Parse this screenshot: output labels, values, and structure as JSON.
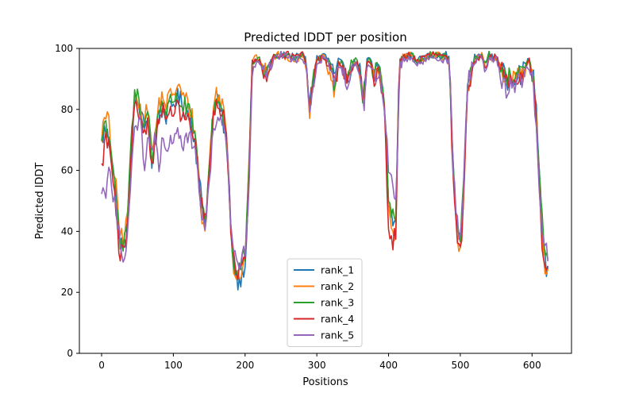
{
  "chart_data": {
    "type": "line",
    "title": "Predicted lDDT per position",
    "xlabel": "Positions",
    "ylabel": "Predicted lDDT",
    "xlim": [
      -31,
      655
    ],
    "ylim": [
      0,
      100
    ],
    "xticks": [
      0,
      100,
      200,
      300,
      400,
      500,
      600
    ],
    "yticks": [
      0,
      20,
      40,
      60,
      80,
      100
    ],
    "grid": false,
    "legend_position": "lower-center",
    "x_max": 623,
    "anchors_x": [
      0,
      5,
      10,
      15,
      20,
      25,
      30,
      35,
      40,
      45,
      50,
      55,
      60,
      65,
      70,
      75,
      80,
      85,
      90,
      95,
      100,
      105,
      110,
      115,
      120,
      125,
      130,
      135,
      140,
      145,
      150,
      155,
      160,
      165,
      170,
      175,
      180,
      185,
      190,
      195,
      200,
      205,
      210,
      215,
      220,
      225,
      230,
      235,
      240,
      245,
      250,
      260,
      270,
      280,
      285,
      290,
      300,
      310,
      320,
      325,
      330,
      335,
      340,
      345,
      350,
      355,
      360,
      365,
      370,
      375,
      380,
      385,
      390,
      395,
      400,
      405,
      410,
      415,
      420,
      430,
      440,
      450,
      460,
      470,
      475,
      480,
      485,
      490,
      495,
      500,
      505,
      510,
      520,
      530,
      535,
      540,
      550,
      560,
      565,
      570,
      575,
      580,
      585,
      590,
      595,
      600,
      605,
      610,
      615,
      620,
      623
    ],
    "series": [
      {
        "name": "rank_1",
        "color": "#1f77b4",
        "values": [
          69,
          74,
          70,
          65,
          52,
          38,
          35,
          38,
          60,
          80,
          82,
          78,
          74,
          80,
          62,
          70,
          79,
          80,
          78,
          80,
          82,
          84,
          83,
          80,
          79,
          76,
          70,
          58,
          50,
          44,
          60,
          78,
          83,
          80,
          75,
          66,
          45,
          28,
          24,
          25,
          30,
          55,
          95,
          96,
          96,
          94,
          93,
          95,
          97,
          98,
          98,
          98,
          97,
          98,
          96,
          82,
          97,
          98,
          95,
          90,
          96,
          95,
          92,
          91,
          95,
          96,
          94,
          84,
          96,
          96,
          92,
          95,
          90,
          80,
          50,
          44,
          42,
          95,
          97,
          98,
          96,
          97,
          98,
          98,
          97,
          98,
          96,
          60,
          42,
          36,
          55,
          88,
          97,
          98,
          94,
          98,
          97,
          92,
          88,
          92,
          90,
          93,
          91,
          94,
          97,
          93,
          85,
          60,
          35,
          28,
          30
        ]
      },
      {
        "name": "rank_2",
        "color": "#ff7f0e",
        "values": [
          72,
          77,
          76,
          62,
          54,
          40,
          38,
          42,
          62,
          82,
          85,
          80,
          76,
          82,
          65,
          73,
          82,
          84,
          82,
          84,
          86,
          87,
          86,
          84,
          82,
          79,
          72,
          60,
          42,
          41,
          62,
          80,
          85,
          84,
          80,
          70,
          42,
          26,
          26,
          27,
          33,
          58,
          96,
          97,
          96,
          93,
          92,
          94,
          97,
          98,
          98,
          97,
          96,
          98,
          95,
          80,
          96,
          97,
          90,
          84,
          95,
          94,
          90,
          89,
          94,
          95,
          93,
          82,
          95,
          95,
          90,
          94,
          88,
          78,
          48,
          40,
          40,
          94,
          97,
          98,
          96,
          97,
          98,
          98,
          96,
          97,
          95,
          58,
          40,
          34,
          54,
          87,
          96,
          98,
          93,
          97,
          97,
          91,
          87,
          91,
          89,
          92,
          90,
          93,
          96,
          92,
          80,
          58,
          33,
          26,
          28
        ]
      },
      {
        "name": "rank_3",
        "color": "#2ca02c",
        "values": [
          70,
          76,
          72,
          64,
          50,
          36,
          34,
          40,
          64,
          84,
          85,
          79,
          75,
          81,
          63,
          72,
          80,
          83,
          79,
          82,
          84,
          84,
          82,
          81,
          80,
          77,
          71,
          58,
          46,
          43,
          61,
          79,
          84,
          82,
          77,
          68,
          40,
          26,
          25,
          30,
          32,
          56,
          95,
          97,
          96,
          93,
          93,
          95,
          97,
          98,
          98,
          98,
          97,
          98,
          96,
          81,
          96,
          98,
          94,
          88,
          96,
          95,
          92,
          90,
          95,
          96,
          94,
          83,
          96,
          96,
          91,
          95,
          89,
          80,
          52,
          46,
          44,
          96,
          97,
          98,
          96,
          97,
          98,
          98,
          97,
          98,
          95,
          60,
          41,
          38,
          56,
          88,
          97,
          98,
          94,
          98,
          97,
          91,
          89,
          92,
          88,
          92,
          91,
          94,
          97,
          92,
          82,
          58,
          40,
          30,
          29
        ]
      },
      {
        "name": "rank_4",
        "color": "#d62728",
        "values": [
          60,
          71,
          68,
          60,
          45,
          32,
          33,
          36,
          58,
          79,
          80,
          77,
          72,
          78,
          60,
          70,
          78,
          80,
          77,
          78,
          80,
          80,
          79,
          77,
          76,
          74,
          68,
          56,
          48,
          43,
          58,
          76,
          80,
          81,
          78,
          68,
          42,
          28,
          27,
          30,
          33,
          54,
          95,
          96,
          96,
          93,
          92,
          94,
          97,
          98,
          98,
          98,
          97,
          98,
          95,
          80,
          96,
          97,
          93,
          88,
          95,
          94,
          91,
          90,
          94,
          95,
          93,
          81,
          95,
          95,
          90,
          94,
          88,
          78,
          40,
          36,
          40,
          95,
          97,
          98,
          96,
          97,
          98,
          98,
          97,
          97,
          95,
          55,
          38,
          32,
          52,
          87,
          96,
          98,
          94,
          97,
          97,
          92,
          88,
          91,
          90,
          91,
          89,
          93,
          97,
          91,
          80,
          55,
          32,
          28,
          25
        ]
      },
      {
        "name": "rank_5",
        "color": "#9467bd",
        "values": [
          54,
          52,
          62,
          52,
          46,
          40,
          32,
          34,
          56,
          70,
          76,
          75,
          58,
          72,
          68,
          70,
          58,
          70,
          66,
          68,
          72,
          74,
          70,
          67,
          72,
          70,
          65,
          55,
          46,
          43,
          55,
          72,
          75,
          78,
          76,
          66,
          43,
          32,
          28,
          30,
          34,
          50,
          92,
          95,
          95,
          92,
          90,
          93,
          96,
          97,
          98,
          97,
          96,
          97,
          95,
          80,
          95,
          97,
          93,
          87,
          95,
          93,
          90,
          88,
          93,
          95,
          92,
          80,
          94,
          94,
          90,
          93,
          86,
          76,
          62,
          58,
          48,
          92,
          96,
          97,
          95,
          96,
          97,
          97,
          96,
          97,
          95,
          62,
          43,
          38,
          57,
          88,
          96,
          98,
          92,
          96,
          97,
          88,
          86,
          89,
          87,
          90,
          88,
          92,
          95,
          90,
          78,
          55,
          38,
          34,
          32
        ]
      }
    ]
  }
}
